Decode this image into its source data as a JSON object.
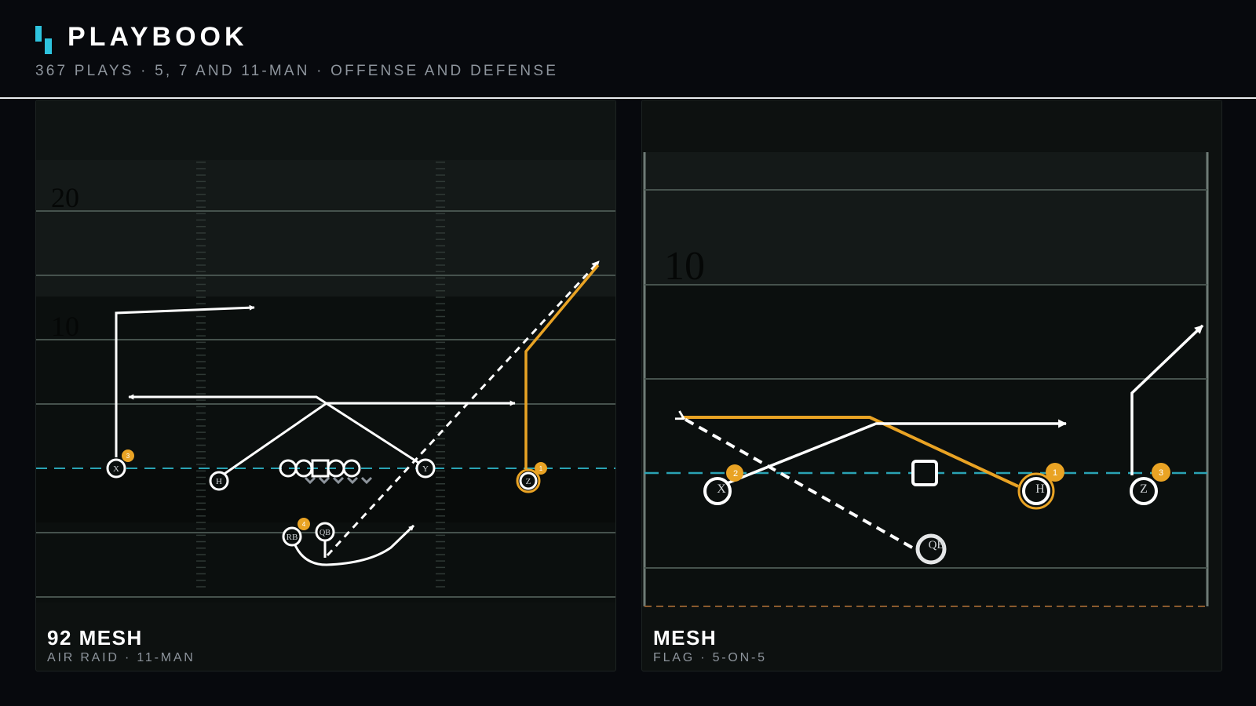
{
  "header": {
    "title": "PLAYBOOK",
    "subtitle": "367 PLAYS · 5, 7 AND 11-MAN · OFFENSE AND DEFENSE",
    "brand_color": "#2ec3de"
  },
  "colors": {
    "primary_route": "#e9a324",
    "line_of_scrimmage": "#2aa3b4",
    "route": "#ffffff",
    "background": "#07090d"
  },
  "plays": [
    {
      "name": "92 MESH",
      "meta": "AIR RAID · 11-MAN",
      "yard_markers": [
        "20",
        "10"
      ],
      "players": [
        "X",
        "H",
        "Y",
        "Z",
        "RB",
        "QB"
      ],
      "read_order": [
        "1",
        "3",
        "4"
      ]
    },
    {
      "name": "MESH",
      "meta": "FLAG · 5-ON-5",
      "yard_markers": [
        "10"
      ],
      "players": [
        "X",
        "H",
        "Z",
        "QB"
      ],
      "read_order": [
        "1",
        "2",
        "3"
      ]
    }
  ]
}
